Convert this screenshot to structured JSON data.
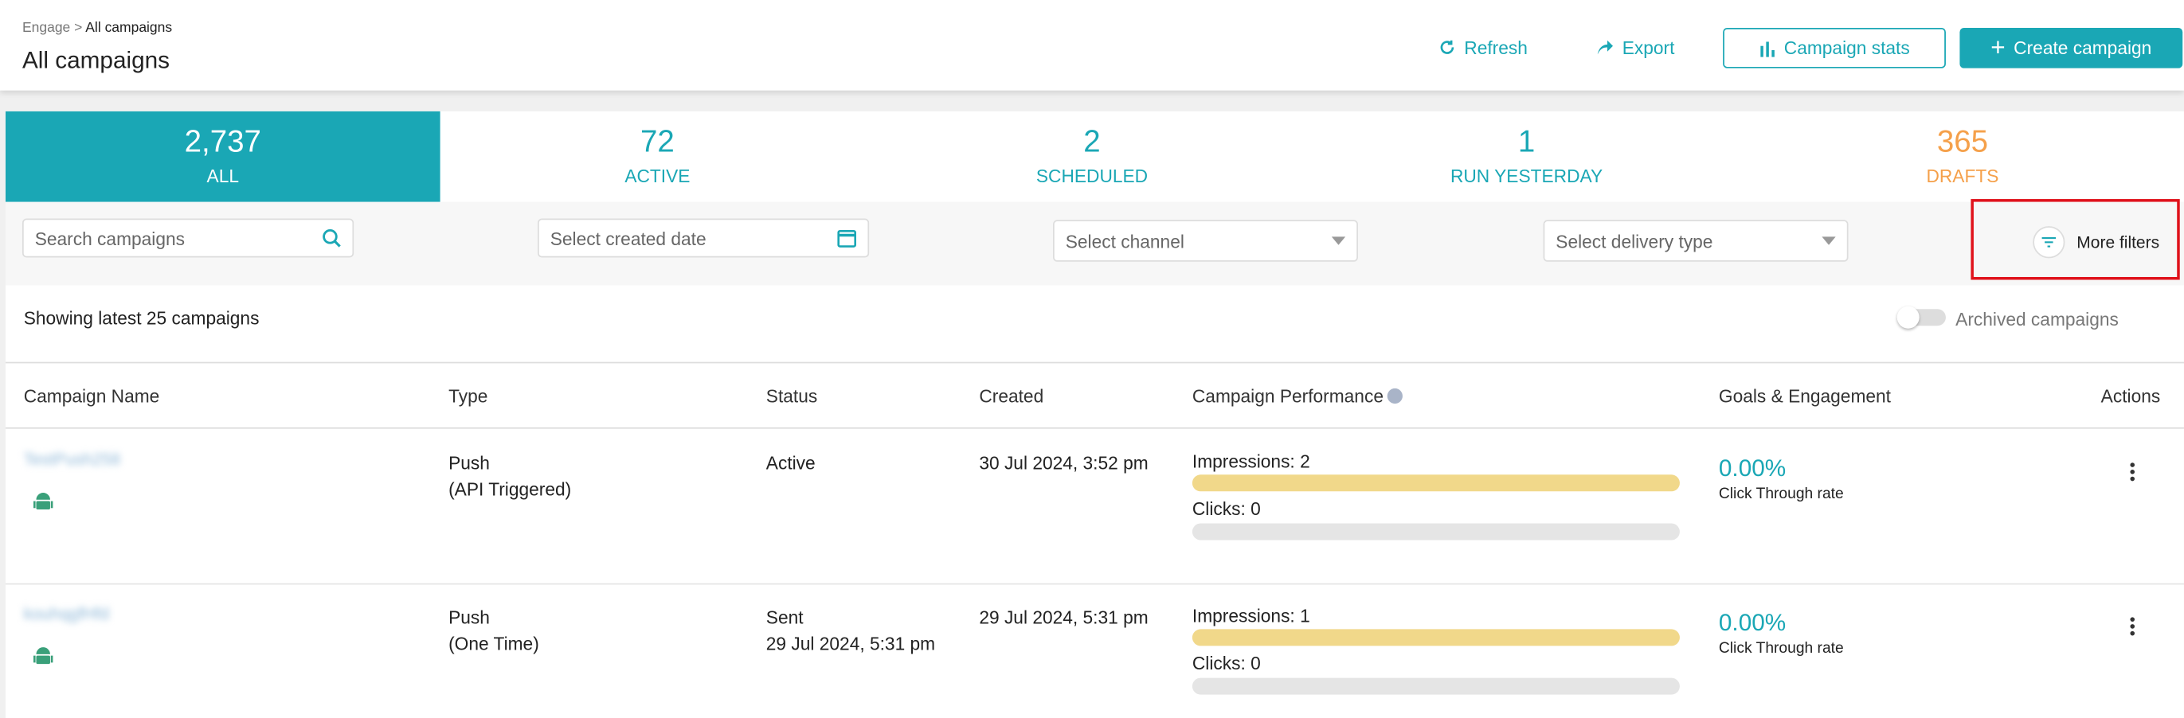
{
  "header": {
    "breadcrumb": [
      "Engage",
      "All campaigns"
    ],
    "breadcrumb_separator": ">",
    "title": "All campaigns",
    "actions": [
      "Refresh",
      "Export",
      "Campaign stats",
      "Create campaign"
    ]
  },
  "tabs": [
    {
      "count": "2,737",
      "label": "ALL"
    },
    {
      "count": "72",
      "label": "ACTIVE"
    },
    {
      "count": "2",
      "label": "SCHEDULED"
    },
    {
      "count": "1",
      "label": "RUN YESTERDAY"
    },
    {
      "count": "365",
      "label": "DRAFTS"
    }
  ],
  "filters": {
    "search": "Search campaigns",
    "date": "Select created date",
    "channel": "Select channel",
    "delivery": "Select delivery type",
    "more": "More filters"
  },
  "summary": "Showing latest 25 campaigns",
  "archived_toggle": "Archived campaigns",
  "table": {
    "columns": [
      "Campaign Name",
      "Type",
      "Status",
      "Created",
      "Campaign Performance",
      "Goals & Engagement",
      "Actions"
    ],
    "rows": [
      {
        "name": "TestPush258",
        "type": [
          "Push",
          "(API Triggered)"
        ],
        "status": [
          "Active"
        ],
        "created": "30 Jul 2024, 3:52 pm",
        "impressions": "Impressions: 2",
        "clicks": "Clicks: 0",
        "ctr": "0.00%",
        "ctr_label": "Click Through rate"
      },
      {
        "name": "kouhqgfHfd",
        "type": [
          "Push",
          "(One Time)"
        ],
        "status": [
          "Sent",
          "29 Jul 2024, 5:31 pm"
        ],
        "created": "29 Jul 2024, 5:31 pm",
        "impressions": "Impressions: 1",
        "clicks": "Clicks: 0",
        "ctr": "0.00%",
        "ctr_label": "Click Through rate"
      }
    ]
  }
}
